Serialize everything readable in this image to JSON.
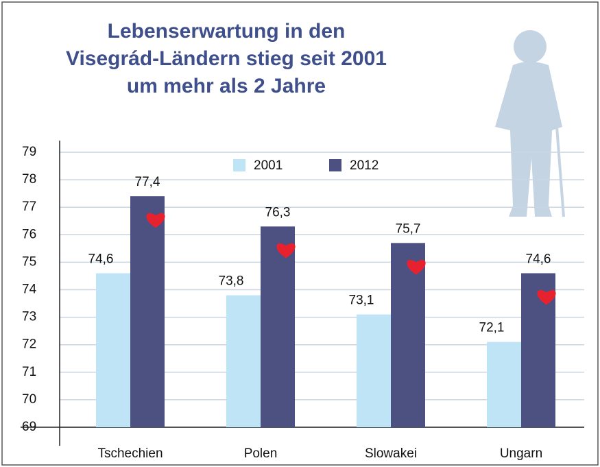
{
  "chart_data": {
    "type": "bar",
    "title": [
      "Lebenserwartung in den",
      "Visegrád-Ländern stieg seit 2001",
      "um mehr als 2 Jahre"
    ],
    "categories": [
      "Tschechien",
      "Polen",
      "Slowakei",
      "Ungarn"
    ],
    "series": [
      {
        "name": "2001",
        "color": "#bfe4f6",
        "values": [
          74.6,
          73.8,
          73.1,
          72.1
        ],
        "value_labels": [
          "74,6",
          "73,8",
          "73,1",
          "72,1"
        ]
      },
      {
        "name": "2012",
        "color": "#4c5182",
        "values": [
          77.4,
          76.3,
          75.7,
          74.6
        ],
        "value_labels": [
          "77,4",
          "76,3",
          "75,7",
          "74,6"
        ]
      }
    ],
    "ylim": [
      69,
      79
    ],
    "yticks": [
      69,
      70,
      71,
      72,
      73,
      74,
      75,
      76,
      77,
      78,
      79
    ],
    "grid": true
  }
}
